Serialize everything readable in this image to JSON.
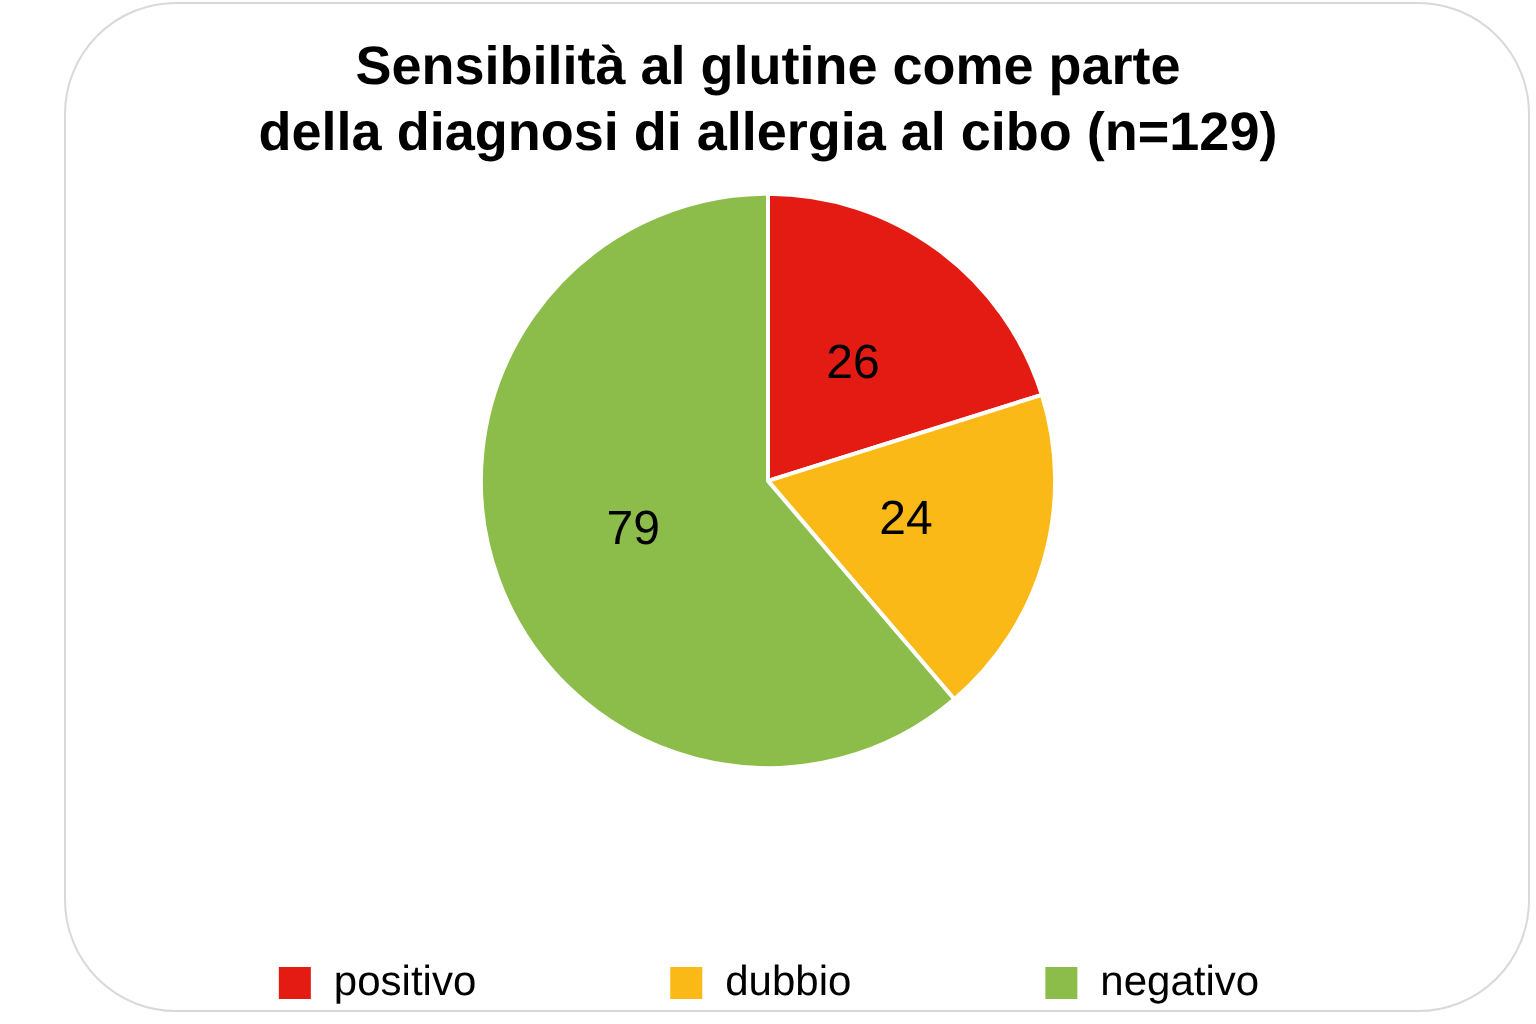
{
  "chart_data": {
    "type": "pie",
    "title": "Sensibilità al glutine come parte\ndella diagnosi di allergia al cibo (n=129)",
    "categories": [
      "positivo",
      "dubbio",
      "negativo"
    ],
    "values": [
      26,
      24,
      79
    ],
    "colors": [
      "#e31b13",
      "#fbb917",
      "#8cbd4a"
    ],
    "data_labels": true,
    "legend": "bottom"
  }
}
